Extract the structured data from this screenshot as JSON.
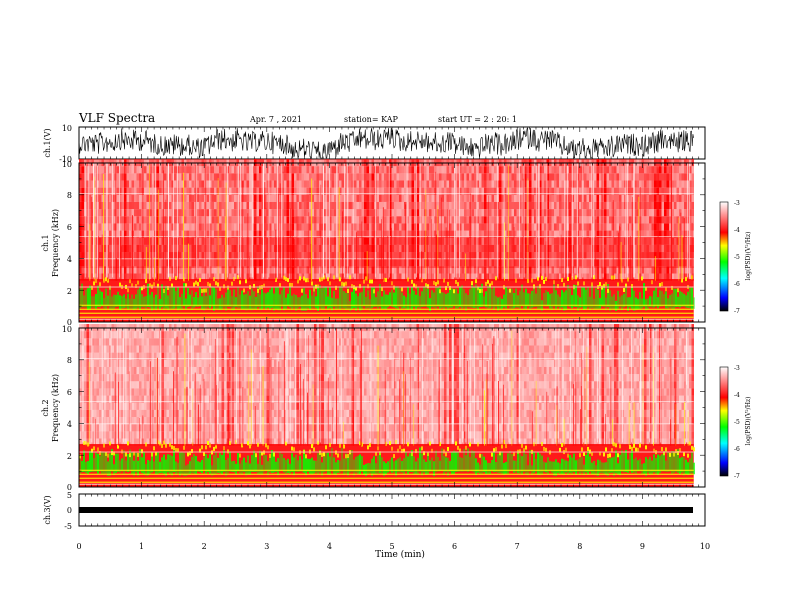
{
  "header": {
    "title": "VLF Spectra",
    "date": "Apr. 7 , 2021",
    "station": "station= KAP",
    "start": "start UT = 2 : 20: 1"
  },
  "chart_data": [
    {
      "type": "line",
      "ylabel": "ch.1(V)",
      "ylim": [
        -10,
        10
      ],
      "yticks": [
        "10",
        "-10"
      ],
      "description_series": "ch.1 waveform"
    },
    {
      "type": "heatmap",
      "ylabel_line1": "ch.1",
      "ylabel_line2": "Frequency (kHz)",
      "ylim": [
        0,
        10
      ],
      "yticks": [
        "0",
        "2",
        "4",
        "6",
        "8",
        "10"
      ],
      "colorbar": {
        "label": "log(PSD)(V²/Hz)",
        "range": [
          -7,
          -3
        ],
        "ticks": [
          "-3",
          "-4",
          "-5",
          "-6",
          "-7"
        ]
      }
    },
    {
      "type": "heatmap",
      "ylabel_line1": "ch.2",
      "ylabel_line2": "Frequency (kHz)",
      "ylim": [
        0,
        10
      ],
      "yticks": [
        "0",
        "2",
        "4",
        "6",
        "8",
        "10"
      ],
      "colorbar": {
        "label": "log(PSD)(V²/Hz)",
        "range": [
          -7,
          -3
        ],
        "ticks": [
          "-3",
          "-4",
          "-5",
          "-6",
          "-7"
        ]
      }
    },
    {
      "type": "line",
      "ylabel": "ch.3(V)",
      "ylim": [
        -5,
        5
      ],
      "yticks": [
        "5",
        "0",
        "-5"
      ]
    }
  ],
  "xaxis": {
    "label": "Time (min)",
    "ticks": [
      "0",
      "1",
      "2",
      "3",
      "4",
      "5",
      "6",
      "7",
      "8",
      "9",
      "10"
    ],
    "range": [
      0,
      10
    ],
    "data_end": 9.82
  },
  "colors": {
    "spectrum_bg": "#ffffff",
    "red": "#ff0000",
    "green": "#00ff00",
    "yellow": "#ffff00",
    "trace": "#000000"
  }
}
